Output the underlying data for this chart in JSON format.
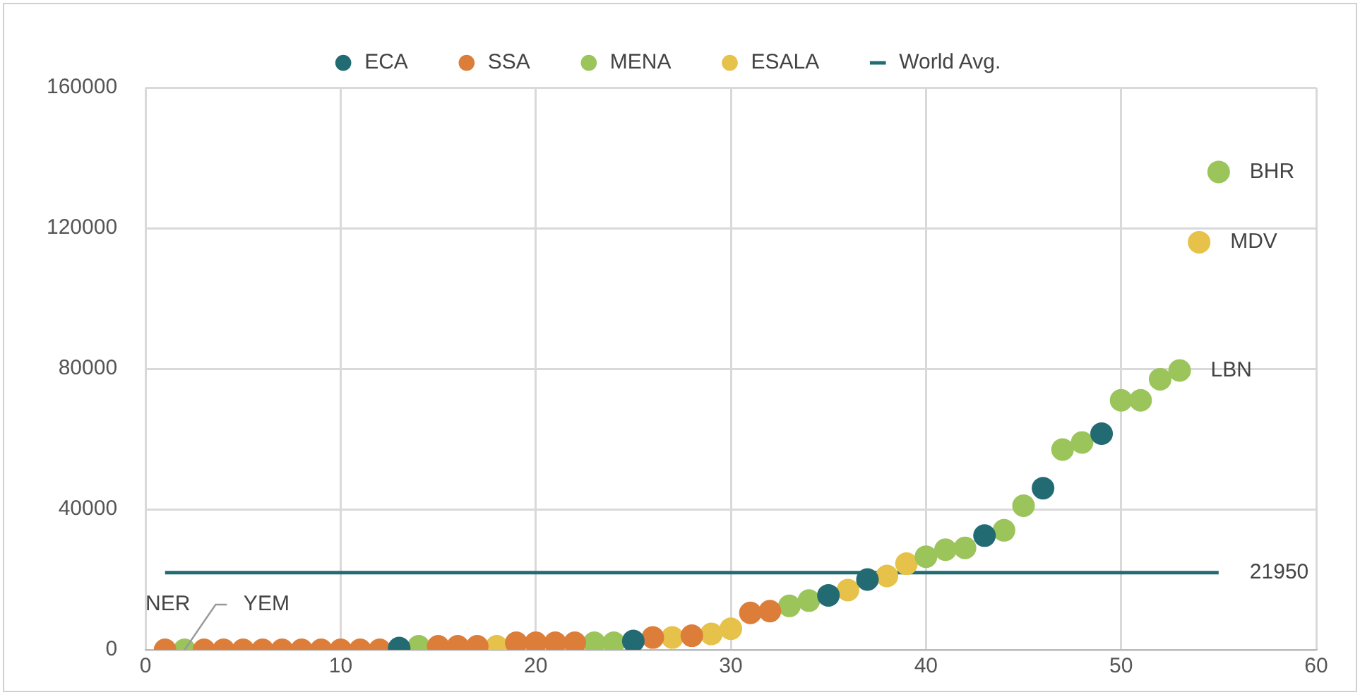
{
  "chart_data": {
    "type": "scatter",
    "xlim": [
      0,
      60
    ],
    "xticks": [
      0,
      10,
      20,
      30,
      40,
      50,
      60
    ],
    "ylim": [
      0,
      160000
    ],
    "yticks": [
      0,
      40000,
      80000,
      120000,
      160000
    ],
    "grid": true,
    "legend": "top",
    "series": [
      {
        "name": "ECA",
        "color": "#236b73",
        "marker": "circle",
        "x": [
          13,
          25,
          35,
          37,
          43,
          46,
          49
        ],
        "values": [
          500,
          2500,
          15500,
          20000,
          32500,
          46000,
          61500
        ]
      },
      {
        "name": "SSA",
        "color": "#dc7e3a",
        "marker": "circle",
        "x": [
          1,
          3,
          4,
          5,
          6,
          7,
          8,
          9,
          10,
          11,
          12,
          15,
          16,
          17,
          19,
          20,
          21,
          22,
          26,
          28,
          31,
          32
        ],
        "values": [
          0,
          0,
          0,
          0,
          0,
          0,
          0,
          0,
          0,
          0,
          0,
          1000,
          1000,
          1000,
          2000,
          2000,
          2000,
          2000,
          3500,
          4000,
          10500,
          11000
        ]
      },
      {
        "name": "MENA",
        "color": "#9bc45a",
        "marker": "circle",
        "x": [
          2,
          14,
          23,
          24,
          33,
          34,
          40,
          41,
          42,
          44,
          45,
          47,
          48,
          50,
          51,
          52,
          53,
          55
        ],
        "values": [
          0,
          1000,
          2000,
          2000,
          12500,
          14000,
          26500,
          28500,
          29000,
          34000,
          41000,
          57000,
          59000,
          71000,
          71000,
          77000,
          79500,
          136000
        ]
      },
      {
        "name": "ESALA",
        "color": "#e6c24a",
        "marker": "circle",
        "x": [
          18,
          27,
          29,
          30,
          36,
          38,
          39,
          54
        ],
        "values": [
          1000,
          3500,
          4500,
          6000,
          17000,
          21000,
          24500,
          116000
        ]
      },
      {
        "name": "World Avg.",
        "type": "line",
        "marker": "none",
        "color": "#236b73",
        "x": [
          1,
          55
        ],
        "values": [
          21950,
          21950
        ]
      }
    ],
    "annotations": [
      {
        "text": "NER",
        "x": 1,
        "y": 0
      },
      {
        "text": "YEM",
        "x": 2,
        "y": 0
      },
      {
        "text": "LBN",
        "x": 53,
        "y": 79500
      },
      {
        "text": "MDV",
        "x": 54,
        "y": 116000
      },
      {
        "text": "BHR",
        "x": 55,
        "y": 136000
      },
      {
        "text": "21950",
        "x": 55,
        "y": 21950
      }
    ]
  }
}
